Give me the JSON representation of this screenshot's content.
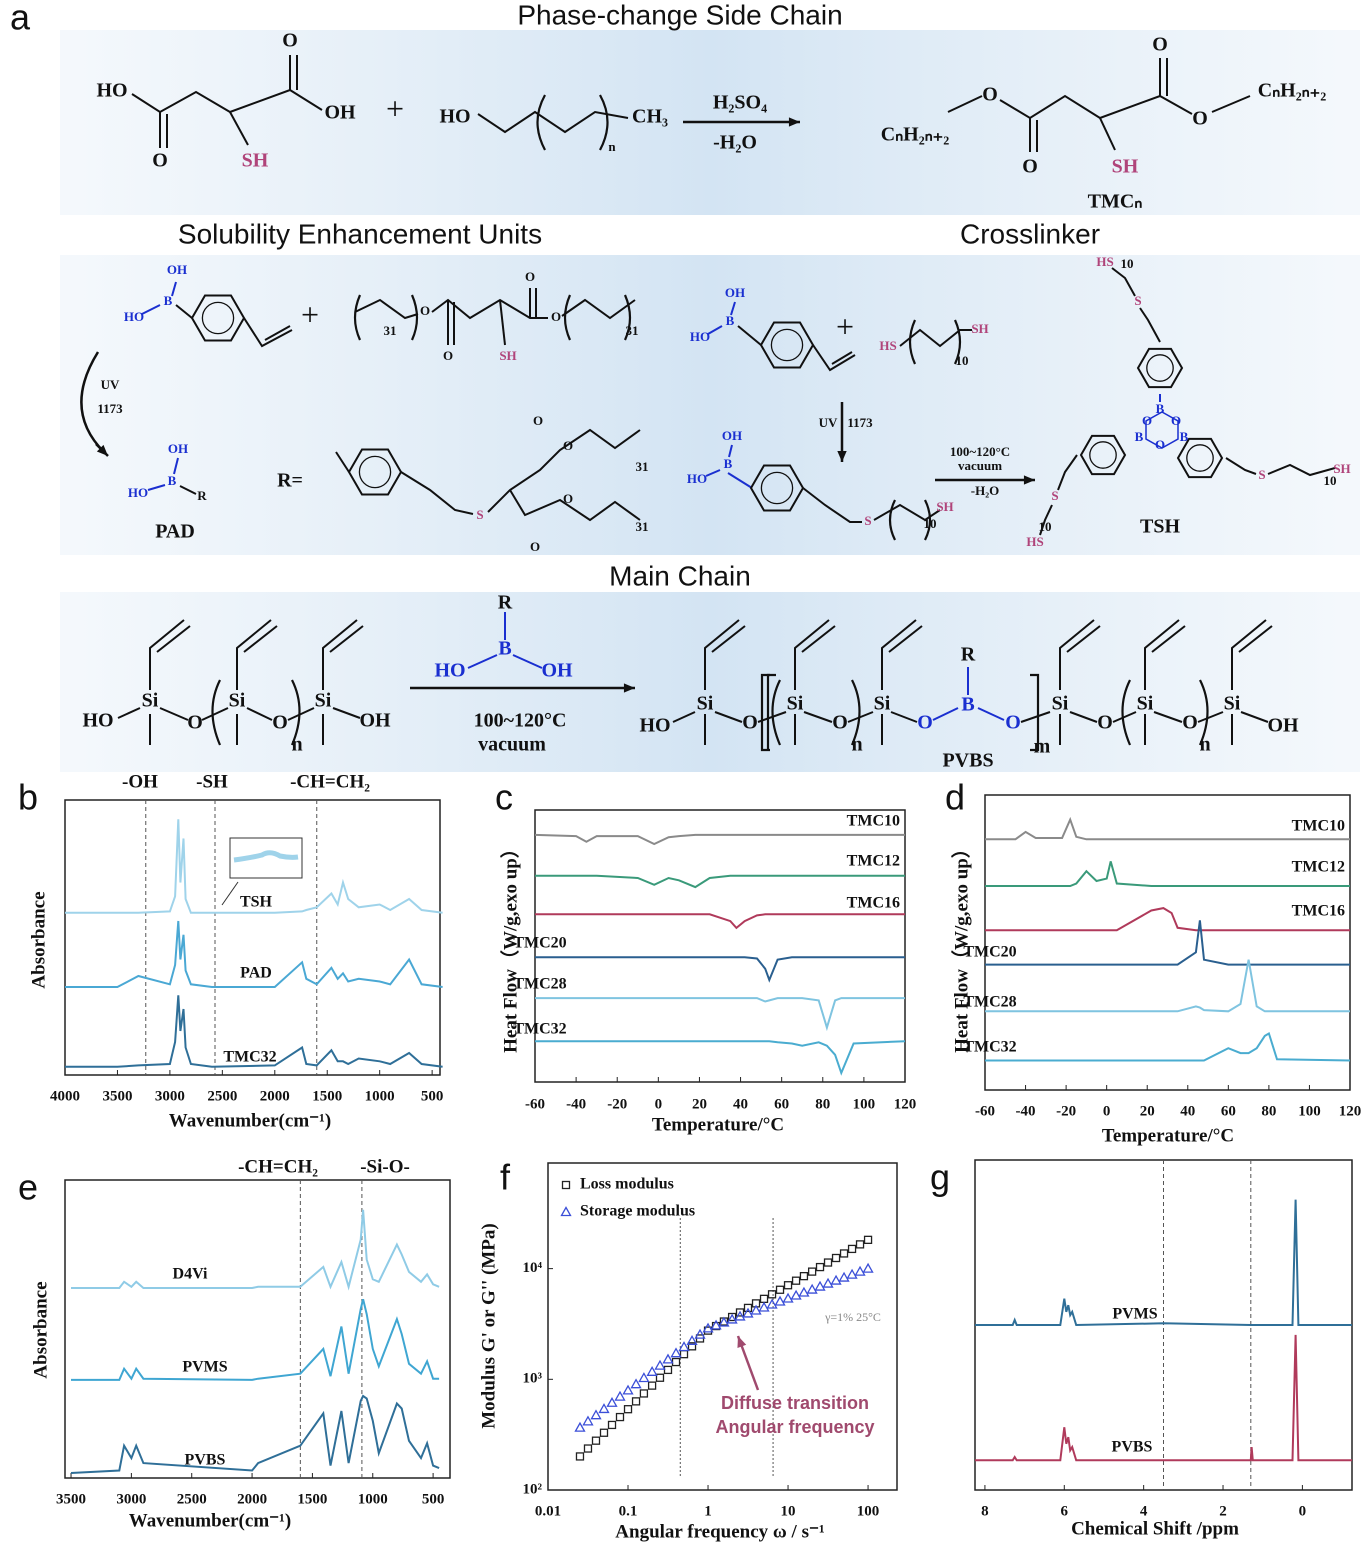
{
  "scheme": {
    "panel": "a",
    "sections": [
      {
        "titles": [
          "Phase-change Side Chain"
        ],
        "labels": [
          "HO",
          "OH",
          "O",
          "O",
          "SH",
          "+",
          "HO",
          "n",
          "CH₃",
          "H₂SO₄",
          "-H₂O",
          "CₙH₂ₙ₊₂",
          "O",
          "O",
          "SH",
          "O",
          "O",
          "CₙH₂ₙ₊₂",
          "TMCₙ"
        ]
      },
      {
        "titles": [
          "Solubility Enhancement Units",
          "Crosslinker"
        ],
        "labels": [
          "OH",
          "HO",
          "B",
          "+",
          "31",
          "O",
          "O",
          "SH",
          "O",
          "O",
          "31",
          "UV",
          "1173",
          "OH",
          "HO",
          "B",
          "R",
          "PAD",
          "R=",
          "S",
          "O",
          "O",
          "31",
          "O",
          "O",
          "31",
          "OH",
          "HO",
          "B",
          "+",
          "HS",
          "10",
          "SH",
          "UV",
          "1173",
          "OH",
          "HO",
          "B",
          "S",
          "10",
          "SH",
          "100~120°C",
          "vacuum",
          "-H₂O",
          "HS",
          "10",
          "S",
          "B",
          "O",
          "O",
          "B",
          "O",
          "B",
          "S",
          "10",
          "SH",
          "S",
          "10",
          "HS",
          "TSH"
        ]
      },
      {
        "titles": [
          "Main Chain"
        ],
        "labels": [
          "HO",
          "Si",
          "O",
          "Si",
          "O",
          "n",
          "Si",
          "OH",
          "R",
          "B",
          "HO",
          "OH",
          "100~120°C",
          "vacuum",
          "HO",
          "Si",
          "O",
          "Si",
          "O",
          "n",
          "Si",
          "O",
          "B",
          "R",
          "O",
          "m",
          "Si",
          "O",
          "Si",
          "O",
          "n",
          "Si",
          "OH",
          "PVBS"
        ]
      }
    ]
  },
  "chart_data": [
    {
      "panel": "b",
      "type": "line",
      "xlabel": "Wavenumber(cm⁻¹)",
      "ylabel": "Absorbance",
      "annotations": [
        "-OH",
        "-SH",
        "-CH=CH₂"
      ],
      "vlines": [
        3230,
        2570,
        1600
      ],
      "xlim": [
        4000,
        425
      ],
      "xticks": [
        4000,
        3500,
        3000,
        2500,
        2000,
        1500,
        1000,
        500
      ],
      "ylim": [
        0,
        10
      ],
      "x": [
        4000,
        3500,
        3300,
        3000,
        2950,
        2920,
        2900,
        2870,
        2850,
        2800,
        2600,
        2000,
        1740,
        1700,
        1600,
        1460,
        1400,
        1350,
        1300,
        1200,
        1000,
        900,
        720,
        600,
        400
      ],
      "series": [
        {
          "name": "TSH",
          "color": "#9fd3ea",
          "values": [
            5.9,
            5.9,
            5.9,
            5.95,
            6.5,
            9.3,
            7.0,
            8.6,
            6.4,
            5.9,
            5.9,
            5.9,
            5.95,
            6.0,
            6.1,
            6.6,
            6.2,
            7.0,
            6.4,
            6.1,
            6.2,
            6.0,
            6.4,
            6.0,
            5.9
          ]
        },
        {
          "name": "PAD",
          "color": "#4aa8d4",
          "values": [
            3.2,
            3.2,
            3.6,
            3.3,
            4.0,
            5.6,
            4.2,
            5.1,
            3.8,
            3.3,
            3.2,
            3.2,
            4.1,
            3.5,
            3.3,
            3.9,
            3.5,
            3.7,
            3.4,
            3.5,
            3.4,
            3.3,
            4.2,
            3.3,
            3.2
          ]
        },
        {
          "name": "TMC32",
          "color": "#2f6f98",
          "values": [
            0.3,
            0.3,
            0.35,
            0.4,
            1.2,
            2.9,
            1.6,
            2.4,
            1.0,
            0.4,
            0.3,
            0.35,
            1.0,
            0.4,
            0.35,
            0.9,
            0.5,
            0.5,
            0.4,
            0.6,
            0.5,
            0.4,
            0.8,
            0.4,
            0.3
          ]
        }
      ]
    },
    {
      "panel": "c",
      "type": "line",
      "xlabel": "Temperature/°C",
      "ylabel": "Heat Flow（W/g,exo up）",
      "xlim": [
        -60,
        120
      ],
      "xticks": [
        -60,
        -40,
        -20,
        0,
        20,
        40,
        60,
        80,
        100,
        120
      ],
      "ylim": [
        0,
        12
      ],
      "x": [
        -60,
        -40,
        -35,
        -30,
        -10,
        -2,
        5,
        10,
        18,
        25,
        35,
        38,
        42,
        48,
        52,
        54,
        58,
        65,
        70,
        78,
        82,
        86,
        89,
        95,
        120
      ],
      "series": [
        {
          "name": "TMC10",
          "color": "#8a8a8a",
          "values": [
            10.9,
            10.85,
            10.6,
            10.85,
            10.85,
            10.5,
            10.8,
            10.85,
            10.9,
            10.9,
            10.9,
            10.9,
            10.9,
            10.9,
            10.9,
            10.9,
            10.9,
            10.9,
            10.9,
            10.9,
            10.9,
            10.9,
            10.9,
            10.9,
            10.9
          ]
        },
        {
          "name": "TMC12",
          "color": "#3a9a7a",
          "values": [
            9.1,
            9.1,
            9.1,
            9.1,
            9.0,
            8.7,
            9.0,
            8.9,
            8.6,
            9.0,
            9.1,
            9.1,
            9.1,
            9.1,
            9.1,
            9.1,
            9.1,
            9.1,
            9.1,
            9.1,
            9.1,
            9.1,
            9.1,
            9.1,
            9.1
          ]
        },
        {
          "name": "TMC16",
          "color": "#b03a5b",
          "values": [
            7.4,
            7.4,
            7.4,
            7.4,
            7.4,
            7.4,
            7.4,
            7.4,
            7.4,
            7.4,
            7.1,
            6.8,
            7.1,
            7.35,
            7.4,
            7.4,
            7.4,
            7.4,
            7.4,
            7.4,
            7.4,
            7.4,
            7.4,
            7.4,
            7.4
          ]
        },
        {
          "name": "TMC20",
          "color": "#2a5f8f",
          "values": [
            5.5,
            5.5,
            5.5,
            5.5,
            5.5,
            5.5,
            5.5,
            5.5,
            5.5,
            5.5,
            5.5,
            5.5,
            5.5,
            5.45,
            5.0,
            4.5,
            5.4,
            5.5,
            5.5,
            5.5,
            5.5,
            5.5,
            5.5,
            5.5,
            5.5
          ]
        },
        {
          "name": "TMC28",
          "color": "#7fc4e0",
          "values": [
            3.7,
            3.7,
            3.7,
            3.7,
            3.7,
            3.7,
            3.7,
            3.7,
            3.7,
            3.7,
            3.7,
            3.7,
            3.7,
            3.7,
            3.55,
            3.6,
            3.7,
            3.7,
            3.7,
            3.6,
            2.4,
            3.6,
            3.7,
            3.7,
            3.7
          ]
        },
        {
          "name": "TMC32",
          "color": "#4aacd0",
          "values": [
            1.8,
            1.8,
            1.8,
            1.8,
            1.8,
            1.8,
            1.8,
            1.8,
            1.8,
            1.8,
            1.8,
            1.8,
            1.8,
            1.8,
            1.8,
            1.8,
            1.75,
            1.7,
            1.6,
            1.75,
            1.6,
            1.2,
            0.4,
            1.7,
            1.8
          ]
        }
      ]
    },
    {
      "panel": "d",
      "type": "line",
      "xlabel": "Temperature/°C",
      "ylabel": "Heat Flow（W/g,exo up）",
      "xlim": [
        -60,
        120
      ],
      "xticks": [
        -60,
        -40,
        -20,
        0,
        20,
        40,
        60,
        80,
        100,
        120
      ],
      "ylim": [
        0,
        12
      ],
      "x": [
        -60,
        -45,
        -40,
        -35,
        -22,
        -18,
        -15,
        -10,
        -5,
        0,
        2,
        5,
        22,
        28,
        32,
        35,
        44,
        46,
        48,
        60,
        66,
        70,
        74,
        78,
        80,
        84,
        120
      ],
      "series": [
        {
          "name": "TMC10",
          "color": "#8a8a8a",
          "values": [
            10.2,
            10.2,
            10.5,
            10.25,
            10.25,
            11.0,
            10.3,
            10.2,
            10.2,
            10.2,
            10.2,
            10.2,
            10.2,
            10.2,
            10.2,
            10.2,
            10.2,
            10.2,
            10.2,
            10.2,
            10.2,
            10.2,
            10.2,
            10.2,
            10.2,
            10.2,
            10.2
          ]
        },
        {
          "name": "TMC12",
          "color": "#3a9a7a",
          "values": [
            8.3,
            8.3,
            8.3,
            8.3,
            8.3,
            8.3,
            8.4,
            8.9,
            8.5,
            8.6,
            9.3,
            8.4,
            8.3,
            8.3,
            8.3,
            8.3,
            8.3,
            8.3,
            8.3,
            8.3,
            8.3,
            8.3,
            8.3,
            8.3,
            8.3,
            8.3,
            8.3
          ]
        },
        {
          "name": "TMC16",
          "color": "#b03a5b",
          "values": [
            6.5,
            6.5,
            6.5,
            6.5,
            6.5,
            6.5,
            6.5,
            6.5,
            6.5,
            6.5,
            6.5,
            6.5,
            7.3,
            7.4,
            7.2,
            6.6,
            6.5,
            6.5,
            6.5,
            6.5,
            6.5,
            6.5,
            6.5,
            6.5,
            6.5,
            6.5,
            6.5
          ]
        },
        {
          "name": "TMC20",
          "color": "#2a5f8f",
          "values": [
            5.1,
            5.1,
            5.1,
            5.1,
            5.1,
            5.1,
            5.1,
            5.1,
            5.1,
            5.1,
            5.1,
            5.1,
            5.1,
            5.1,
            5.1,
            5.1,
            5.6,
            6.9,
            5.3,
            5.1,
            5.1,
            5.1,
            5.1,
            5.1,
            5.1,
            5.1,
            5.1
          ]
        },
        {
          "name": "TMC28",
          "color": "#7fc4e0",
          "values": [
            3.2,
            3.2,
            3.2,
            3.2,
            3.2,
            3.2,
            3.2,
            3.2,
            3.2,
            3.2,
            3.2,
            3.2,
            3.2,
            3.2,
            3.2,
            3.2,
            3.4,
            3.35,
            3.25,
            3.2,
            3.5,
            5.3,
            3.4,
            3.2,
            3.2,
            3.2,
            3.2
          ]
        },
        {
          "name": "TMC32",
          "color": "#4aacd0",
          "values": [
            1.2,
            1.2,
            1.2,
            1.2,
            1.2,
            1.2,
            1.2,
            1.2,
            1.2,
            1.2,
            1.2,
            1.2,
            1.2,
            1.2,
            1.2,
            1.2,
            1.2,
            1.2,
            1.2,
            1.7,
            1.5,
            1.5,
            1.7,
            2.2,
            2.3,
            1.25,
            1.2
          ]
        }
      ]
    },
    {
      "panel": "e",
      "type": "line",
      "xlabel": "Wavenumber(cm⁻¹)",
      "ylabel": "Absorbance",
      "annotations": [
        "-CH=CH₂",
        "-Si-O-"
      ],
      "vlines": [
        1600,
        1090
      ],
      "xlim": [
        3550,
        360
      ],
      "xticks": [
        3500,
        3000,
        2500,
        2000,
        1500,
        1000,
        500
      ],
      "ylim": [
        0,
        12
      ],
      "x": [
        3500,
        3100,
        3060,
        3000,
        2960,
        2900,
        2000,
        1950,
        1600,
        1410,
        1350,
        1260,
        1200,
        1100,
        1080,
        1050,
        1000,
        950,
        800,
        760,
        700,
        600,
        550,
        500,
        450
      ],
      "series": [
        {
          "name": "D4Vi",
          "color": "#8fcbe6",
          "values": [
            7.65,
            7.65,
            7.9,
            7.7,
            7.9,
            7.65,
            7.65,
            7.7,
            7.7,
            8.5,
            7.7,
            8.7,
            7.7,
            9.6,
            10.8,
            8.8,
            8.0,
            7.9,
            9.4,
            9.0,
            8.3,
            7.9,
            8.2,
            7.8,
            7.7
          ]
        },
        {
          "name": "PVMS",
          "color": "#3fa6d2",
          "values": [
            3.95,
            3.95,
            4.4,
            4.0,
            4.4,
            4.0,
            3.95,
            4.0,
            4.2,
            5.2,
            4.1,
            6.1,
            4.2,
            6.8,
            7.2,
            6.6,
            5.2,
            4.5,
            6.4,
            5.8,
            4.6,
            4.2,
            4.7,
            4.0,
            4.0
          ]
        },
        {
          "name": "PVBS",
          "color": "#2f6f98",
          "values": [
            0.2,
            0.3,
            1.3,
            0.8,
            1.3,
            0.6,
            0.3,
            0.6,
            1.3,
            2.6,
            0.5,
            2.7,
            0.6,
            3.1,
            3.3,
            3.2,
            2.3,
            1.0,
            3.0,
            2.8,
            1.5,
            0.8,
            1.4,
            0.5,
            0.4
          ]
        }
      ]
    },
    {
      "panel": "f",
      "type": "scatter",
      "xscale": "log",
      "yscale": "log",
      "legend": "upper left",
      "xlabel": "Angular frequency ω / s⁻¹",
      "ylabel": "Modulus G' or G'' (MPa)",
      "annotations": [
        "γ=1% 25°C",
        "Diffuse transition",
        "Angular frequency"
      ],
      "vlines": [
        0.45,
        6.5
      ],
      "xlim": [
        0.01,
        230
      ],
      "xticks": [
        0.01,
        0.1,
        1,
        10,
        100
      ],
      "ylim": [
        100,
        90000
      ],
      "yticks": [
        {
          "value": 100,
          "label": "10²"
        },
        {
          "value": 1000,
          "label": "10³"
        },
        {
          "value": 10000,
          "label": "10⁴"
        }
      ],
      "x": [
        0.0251,
        0.0316,
        0.0398,
        0.0501,
        0.0631,
        0.0794,
        0.1,
        0.126,
        0.158,
        0.2,
        0.251,
        0.316,
        0.398,
        0.501,
        0.631,
        0.794,
        1,
        1.26,
        1.58,
        2,
        2.51,
        3.16,
        3.98,
        5.01,
        6.31,
        7.94,
        10,
        12.6,
        15.8,
        20,
        25.1,
        31.6,
        39.8,
        50.1,
        63.1,
        79.4,
        100
      ],
      "series": [
        {
          "name": "Loss modulus",
          "marker": "square",
          "color": "#222222",
          "values": [
            201,
            237,
            279,
            329,
            387,
            456,
            537,
            632,
            745,
            877,
            1033,
            1216,
            1432,
            1687,
            1986,
            2339,
            2754,
            3027,
            3327,
            3656,
            4018,
            4416,
            4853,
            5333,
            5861,
            6442,
            7079,
            7780,
            8551,
            9397,
            10327,
            11350,
            12474,
            13709,
            15066,
            16558,
            18197
          ]
        },
        {
          "name": "Storage modulus",
          "marker": "triangle",
          "color": "#3b4fd8",
          "values": [
            366,
            417,
            474,
            540,
            614,
            698,
            794,
            904,
            1028,
            1169,
            1330,
            1514,
            1722,
            1959,
            2228,
            2535,
            2884,
            3069,
            3266,
            3475,
            3698,
            3936,
            4188,
            4457,
            4742,
            5047,
            5370,
            5715,
            6081,
            6471,
            6887,
            7328,
            7798,
            8299,
            8831,
            9397,
            10000
          ]
        }
      ]
    },
    {
      "panel": "g",
      "type": "line",
      "xlabel": "Chemical Shift /ppm",
      "vlines": [
        3.5,
        1.3
      ],
      "xlim": [
        8.25,
        -1.25
      ],
      "xticks": [
        8,
        6,
        4,
        2,
        0
      ],
      "ylim": [
        0,
        10
      ],
      "x": [
        8.25,
        7.3,
        7.25,
        7.2,
        6.1,
        6.0,
        5.95,
        5.9,
        5.85,
        5.8,
        5.7,
        3.5,
        1.3,
        1.28,
        1.25,
        0.25,
        0.17,
        0.1,
        -1.25
      ],
      "series": [
        {
          "name": "PVMS",
          "color": "#2f6f98",
          "values": [
            5.0,
            5.0,
            5.15,
            5.0,
            5.0,
            5.8,
            5.4,
            5.6,
            5.3,
            5.4,
            5.0,
            5.05,
            5.0,
            5.0,
            5.0,
            5.0,
            8.8,
            5.0,
            5.0
          ]
        },
        {
          "name": "PVBS",
          "color": "#b03a5b",
          "values": [
            0.9,
            0.9,
            1.0,
            0.9,
            0.9,
            1.9,
            1.4,
            1.6,
            1.2,
            1.3,
            0.9,
            0.9,
            0.9,
            1.3,
            0.9,
            0.9,
            4.7,
            0.9,
            0.9
          ]
        }
      ]
    }
  ]
}
